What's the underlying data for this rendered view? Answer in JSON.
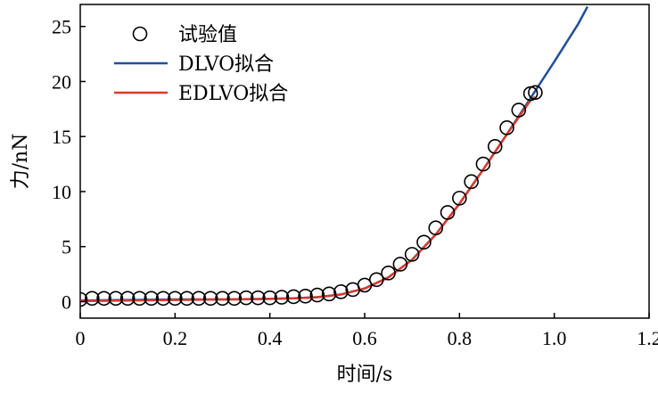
{
  "chart_data": {
    "type": "scatter",
    "xlabel": "时间/s",
    "ylabel": "力/nN",
    "xlim": [
      0,
      1.2
    ],
    "ylim": [
      -1.5,
      27
    ],
    "xticks": [
      "0",
      "0.2",
      "0.4",
      "0.6",
      "0.8",
      "1.0",
      "1.2"
    ],
    "xtick_values": [
      0,
      0.2,
      0.4,
      0.6,
      0.8,
      1.0,
      1.2
    ],
    "yticks": [
      "0",
      "5",
      "10",
      "15",
      "20",
      "25"
    ],
    "ytick_values": [
      0,
      5,
      10,
      15,
      20,
      25
    ],
    "grid": false,
    "legend_position": "top-left",
    "series": [
      {
        "name": "试验值",
        "kind": "scatter",
        "marker": "open-circle",
        "color": "#000000",
        "x": [
          0.0,
          0.025,
          0.05,
          0.075,
          0.1,
          0.125,
          0.15,
          0.175,
          0.2,
          0.225,
          0.25,
          0.275,
          0.3,
          0.325,
          0.35,
          0.375,
          0.4,
          0.425,
          0.45,
          0.475,
          0.5,
          0.525,
          0.55,
          0.575,
          0.6,
          0.625,
          0.65,
          0.675,
          0.7,
          0.725,
          0.75,
          0.775,
          0.8,
          0.825,
          0.85,
          0.875,
          0.9,
          0.925,
          0.95,
          0.96
        ],
        "y": [
          0.2,
          0.3,
          0.3,
          0.3,
          0.3,
          0.3,
          0.3,
          0.3,
          0.3,
          0.3,
          0.3,
          0.3,
          0.3,
          0.3,
          0.35,
          0.35,
          0.35,
          0.4,
          0.45,
          0.5,
          0.6,
          0.7,
          0.9,
          1.1,
          1.5,
          2.0,
          2.6,
          3.4,
          4.3,
          5.4,
          6.7,
          8.1,
          9.4,
          10.9,
          12.5,
          14.1,
          15.8,
          17.4,
          18.9,
          19.0
        ]
      },
      {
        "name": "DLVO拟合",
        "kind": "line",
        "color": "#1f4e9c",
        "x": [
          0.0,
          0.1,
          0.2,
          0.3,
          0.4,
          0.45,
          0.5,
          0.55,
          0.6,
          0.65,
          0.7,
          0.75,
          0.8,
          0.85,
          0.9,
          0.95,
          1.0,
          1.05,
          1.07
        ],
        "y": [
          0.1,
          0.15,
          0.2,
          0.2,
          0.25,
          0.3,
          0.4,
          0.65,
          1.2,
          2.2,
          3.8,
          6.1,
          8.9,
          12.0,
          15.2,
          18.5,
          21.8,
          25.2,
          26.8
        ]
      },
      {
        "name": "EDLVO拟合",
        "kind": "line",
        "color": "#d93a2b",
        "x": [
          0.0,
          0.1,
          0.2,
          0.3,
          0.4,
          0.45,
          0.5,
          0.55,
          0.6,
          0.65,
          0.7,
          0.75,
          0.8,
          0.85,
          0.9,
          0.95,
          0.96
        ],
        "y": [
          0.05,
          0.1,
          0.15,
          0.2,
          0.25,
          0.3,
          0.4,
          0.65,
          1.2,
          2.2,
          3.8,
          6.1,
          8.9,
          12.0,
          15.2,
          18.3,
          18.6
        ]
      }
    ]
  }
}
